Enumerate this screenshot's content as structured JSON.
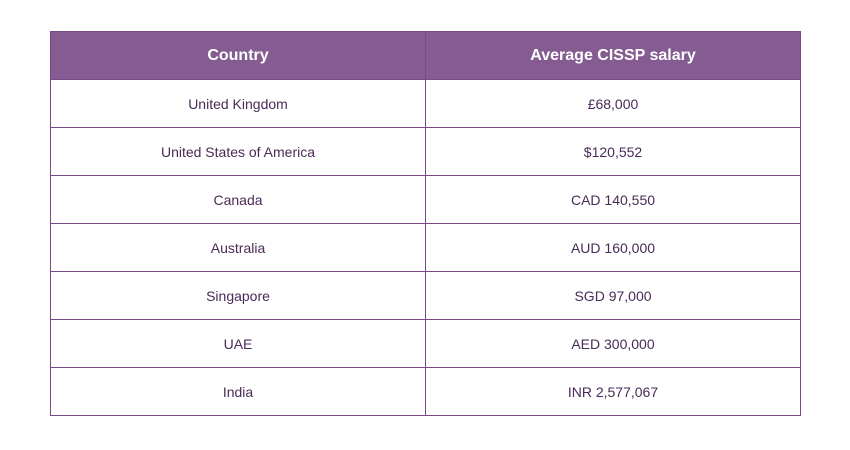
{
  "table": {
    "headers": [
      "Country",
      "Average CISSP salary"
    ],
    "rows": [
      [
        "United Kingdom",
        "£68,000"
      ],
      [
        "United States of America",
        "$120,552"
      ],
      [
        "Canada",
        "CAD 140,550"
      ],
      [
        "Australia",
        "AUD 160,000"
      ],
      [
        "Singapore",
        "SGD 97,000"
      ],
      [
        "UAE",
        "AED 300,000"
      ],
      [
        "India",
        "INR 2,577,067"
      ]
    ]
  },
  "colors": {
    "header_bg": "#845c92",
    "border": "#7a4a86",
    "text": "#4a2a57"
  }
}
